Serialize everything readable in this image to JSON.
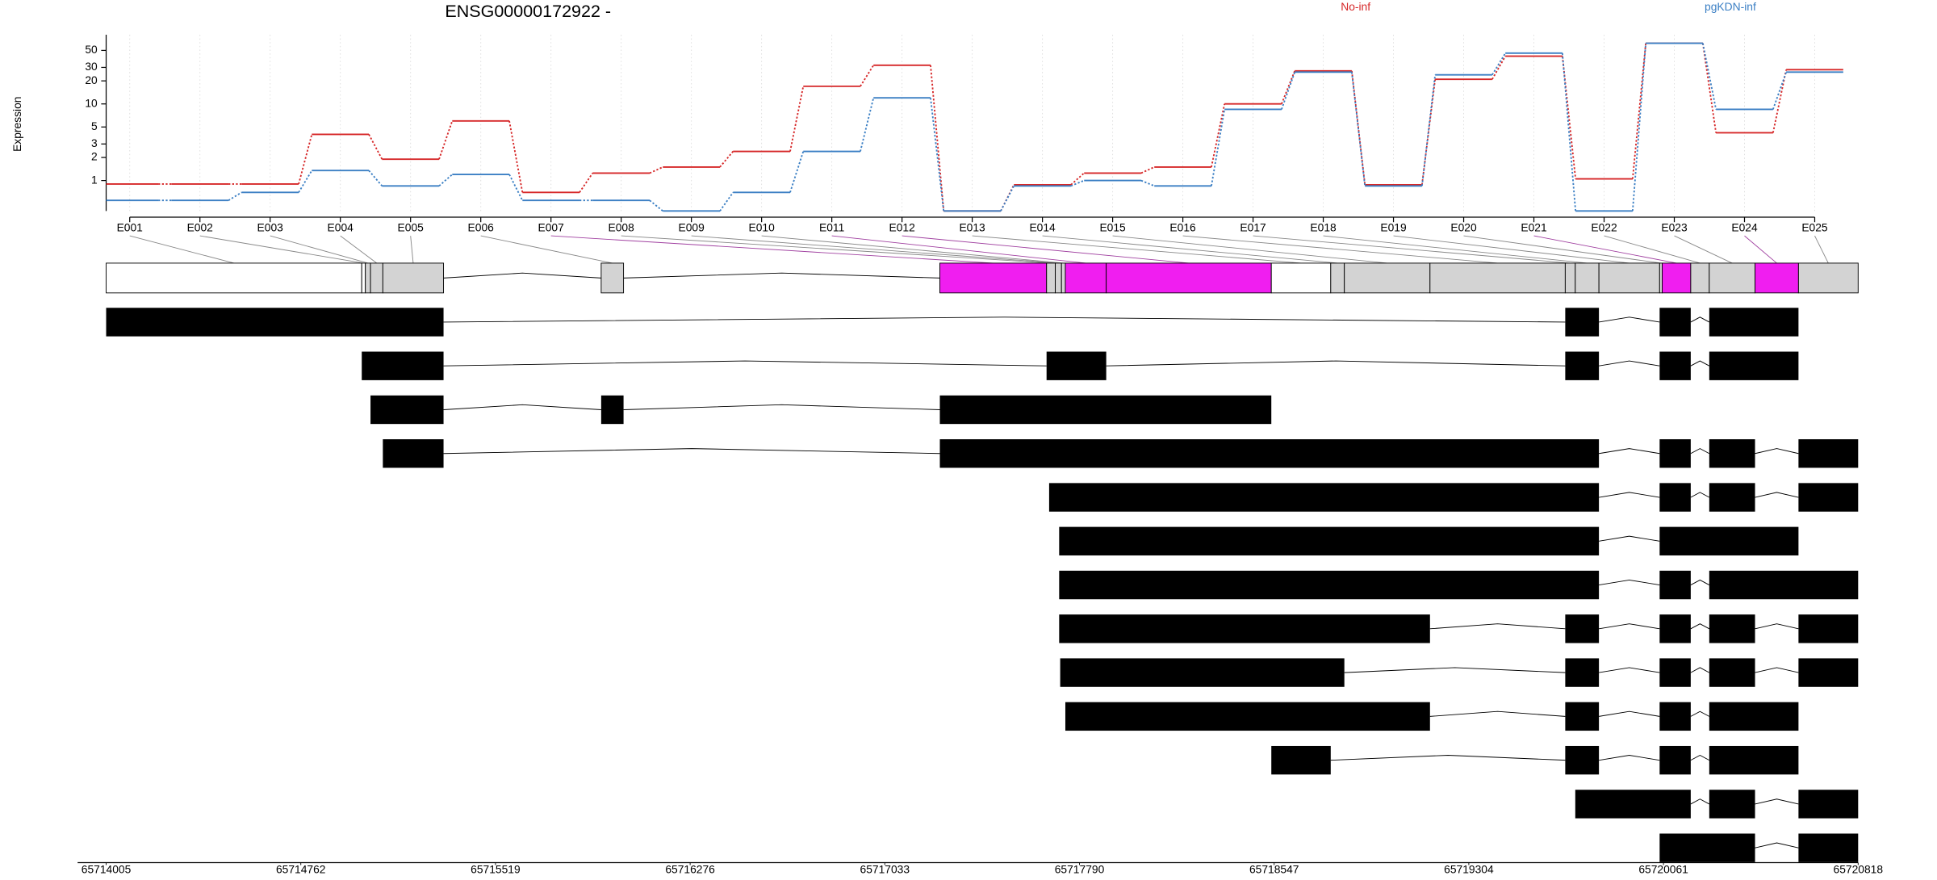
{
  "chart_data": {
    "type": "exon_usage",
    "title": "ENSG00000172922 -",
    "ylabel": "Expression",
    "y_log": true,
    "ylim": [
      0.4,
      80
    ],
    "yticks": [
      1,
      2,
      3,
      5,
      10,
      20,
      30,
      50
    ],
    "grid": true,
    "legend_position": "top",
    "categories": [
      "E001",
      "E002",
      "E003",
      "E004",
      "E005",
      "E006",
      "E007",
      "E008",
      "E009",
      "E010",
      "E011",
      "E012",
      "E013",
      "E014",
      "E015",
      "E016",
      "E017",
      "E018",
      "E019",
      "E020",
      "E021",
      "E022",
      "E023",
      "E024",
      "E025"
    ],
    "series": [
      {
        "name": "No-inf",
        "color": "#d62728",
        "values": [
          0.9,
          0.9,
          0.9,
          4,
          1.9,
          6,
          0.7,
          1.25,
          1.5,
          2.4,
          17,
          32,
          0.4,
          0.88,
          1.25,
          1.5,
          10,
          27,
          0.88,
          21,
          42,
          1.05,
          62,
          4.2,
          28
        ]
      },
      {
        "name": "pgKDN-inf",
        "color": "#3b7fc4",
        "values": [
          0.55,
          0.55,
          0.7,
          1.35,
          0.85,
          1.2,
          0.55,
          0.55,
          0.4,
          0.7,
          2.4,
          12,
          0.4,
          0.85,
          1.0,
          0.85,
          8.5,
          26,
          0.85,
          24,
          46,
          0.4,
          62,
          8.5,
          26
        ]
      }
    ],
    "exons": [
      {
        "start": 65714005,
        "end": 65714999,
        "color": "#ffffff"
      },
      {
        "start": 65714999,
        "end": 65715013,
        "color": "#ffffff"
      },
      {
        "start": 65715013,
        "end": 65715033,
        "color": "#d3d3d3"
      },
      {
        "start": 65715033,
        "end": 65715081,
        "color": "#d3d3d3"
      },
      {
        "start": 65715081,
        "end": 65715317,
        "color": "#d3d3d3"
      },
      {
        "start": 65715930,
        "end": 65716017,
        "color": "#d3d3d3"
      },
      {
        "start": 65717247,
        "end": 65717662,
        "color": "#f01ef0"
      },
      {
        "start": 65717662,
        "end": 65717696,
        "color": "#d3d3d3"
      },
      {
        "start": 65717696,
        "end": 65717720,
        "color": "#d3d3d3"
      },
      {
        "start": 65717720,
        "end": 65717735,
        "color": "#d3d3d3"
      },
      {
        "start": 65717735,
        "end": 65717894,
        "color": "#f01ef0"
      },
      {
        "start": 65717894,
        "end": 65718536,
        "color": "#f01ef0"
      },
      {
        "start": 65718536,
        "end": 65718767,
        "color": "#ffffff"
      },
      {
        "start": 65718767,
        "end": 65718820,
        "color": "#d3d3d3"
      },
      {
        "start": 65718820,
        "end": 65719153,
        "color": "#d3d3d3"
      },
      {
        "start": 65719153,
        "end": 65719679,
        "color": "#d3d3d3"
      },
      {
        "start": 65719679,
        "end": 65719718,
        "color": "#d3d3d3"
      },
      {
        "start": 65719718,
        "end": 65719810,
        "color": "#d3d3d3"
      },
      {
        "start": 65719810,
        "end": 65720046,
        "color": "#d3d3d3"
      },
      {
        "start": 65720046,
        "end": 65720056,
        "color": "#d3d3d3"
      },
      {
        "start": 65720056,
        "end": 65720167,
        "color": "#f01ef0"
      },
      {
        "start": 65720167,
        "end": 65720239,
        "color": "#d3d3d3"
      },
      {
        "start": 65720239,
        "end": 65720417,
        "color": "#d3d3d3"
      },
      {
        "start": 65720417,
        "end": 65720586,
        "color": "#f01ef0"
      },
      {
        "start": 65720586,
        "end": 65720818,
        "color": "#d3d3d3"
      }
    ],
    "transcripts": [
      [
        [
          65714005,
          65715317
        ],
        [
          65719679,
          65719810
        ],
        [
          65720046,
          65720167
        ],
        [
          65720239,
          65720586
        ]
      ],
      [
        [
          65714999,
          65715317
        ],
        [
          65717662,
          65717894
        ],
        [
          65719679,
          65719810
        ],
        [
          65720046,
          65720167
        ],
        [
          65720239,
          65720586
        ]
      ],
      [
        [
          65715033,
          65715317
        ],
        [
          65715930,
          65716017
        ],
        [
          65717247,
          65718536
        ]
      ],
      [
        [
          65715081,
          65715317
        ],
        [
          65717247,
          65719810
        ],
        [
          65720046,
          65720167
        ],
        [
          65720239,
          65720417
        ],
        [
          65720586,
          65720818
        ]
      ],
      [
        [
          65717672,
          65719810
        ],
        [
          65720046,
          65720167
        ],
        [
          65720239,
          65720417
        ],
        [
          65720586,
          65720818
        ]
      ],
      [
        [
          65717711,
          65719810
        ],
        [
          65720046,
          65720586
        ]
      ],
      [
        [
          65717711,
          65719810
        ],
        [
          65720046,
          65720167
        ],
        [
          65720239,
          65720818
        ]
      ],
      [
        [
          65717711,
          65719153
        ],
        [
          65719679,
          65719810
        ],
        [
          65720046,
          65720167
        ],
        [
          65720239,
          65720417
        ],
        [
          65720586,
          65720818
        ]
      ],
      [
        [
          65717715,
          65718820
        ],
        [
          65719679,
          65719810
        ],
        [
          65720046,
          65720167
        ],
        [
          65720239,
          65720417
        ],
        [
          65720586,
          65720818
        ]
      ],
      [
        [
          65717735,
          65719153
        ],
        [
          65719679,
          65719810
        ],
        [
          65720046,
          65720167
        ],
        [
          65720239,
          65720586
        ]
      ],
      [
        [
          65718536,
          65718767
        ],
        [
          65719679,
          65719810
        ],
        [
          65720046,
          65720167
        ],
        [
          65720239,
          65720586
        ]
      ],
      [
        [
          65719718,
          65720167
        ],
        [
          65720239,
          65720417
        ],
        [
          65720586,
          65720818
        ]
      ],
      [
        [
          65720046,
          65720417
        ],
        [
          65720586,
          65720818
        ]
      ]
    ],
    "xlim": [
      65714005,
      65720818
    ],
    "xticks": [
      65714005,
      65714762,
      65715519,
      65716276,
      65717033,
      65717790,
      65718547,
      65719304,
      65720061,
      65720818
    ]
  }
}
